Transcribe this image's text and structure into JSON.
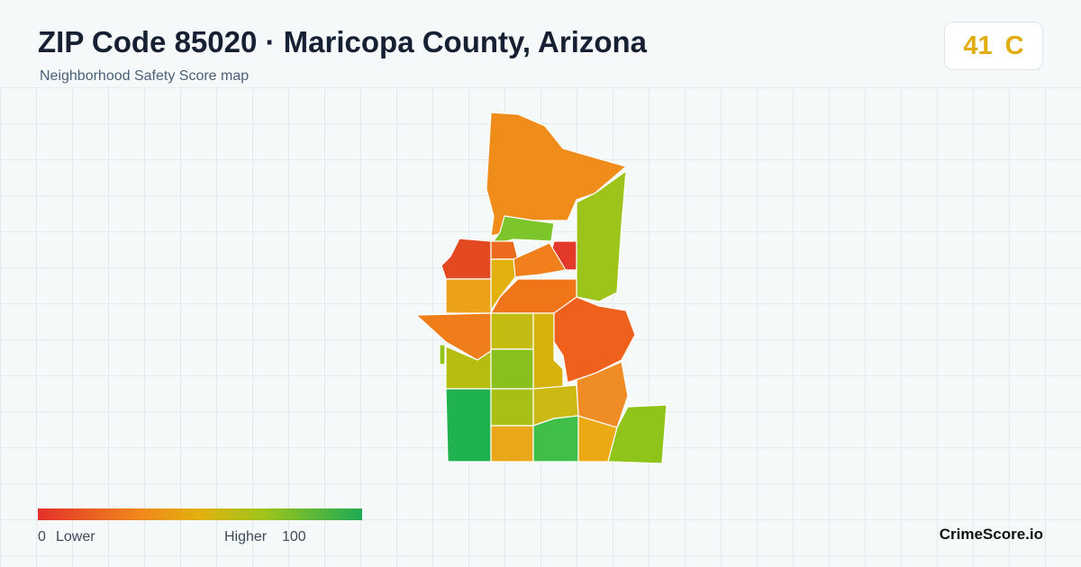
{
  "header": {
    "title": "ZIP Code 85020 · Maricopa County, Arizona",
    "subtitle": "Neighborhood Safety Score map"
  },
  "score": {
    "value": 41,
    "grade": "C"
  },
  "legend": {
    "min": 0,
    "min_label": "Lower",
    "max_label": "Higher",
    "max": 100
  },
  "brand": "CrimeScore.io"
}
